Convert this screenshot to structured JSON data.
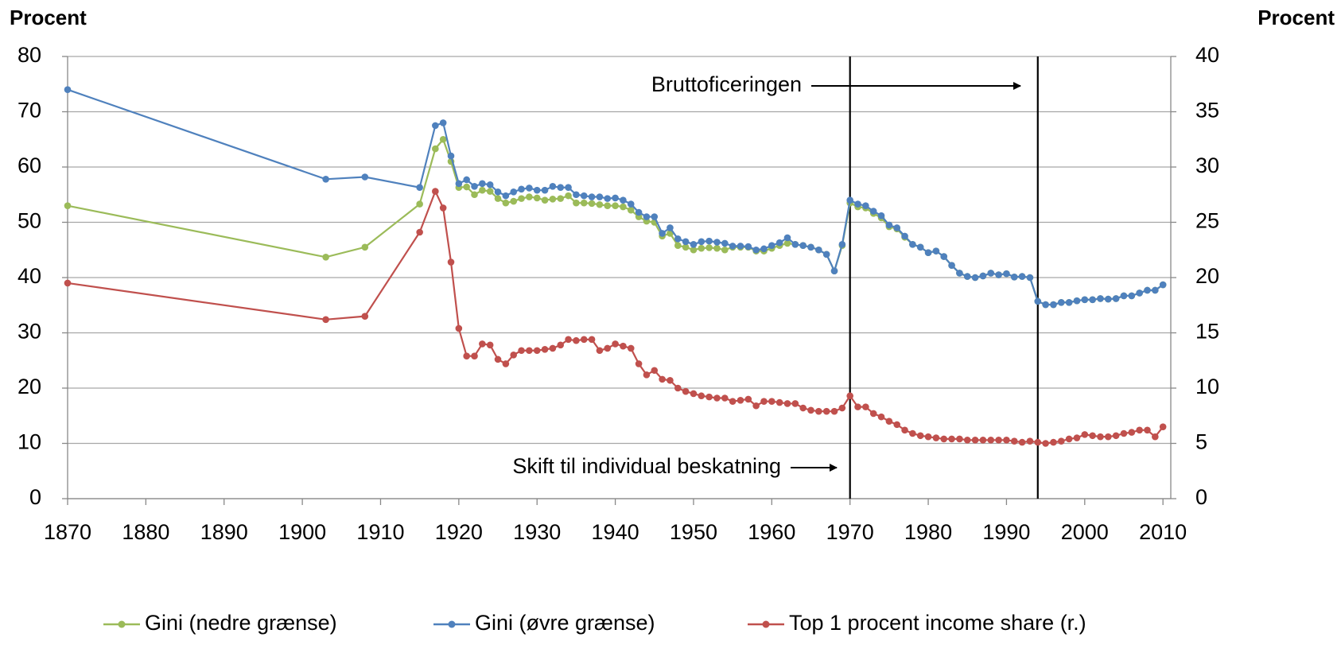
{
  "chart_data": {
    "type": "line",
    "ylabel": "Procent",
    "y2label": "Procent",
    "xlim": [
      1870,
      2011
    ],
    "xticks": [
      1870,
      1880,
      1890,
      1900,
      1910,
      1920,
      1930,
      1940,
      1950,
      1960,
      1970,
      1980,
      1990,
      2000,
      2010
    ],
    "ylim": [
      0,
      80
    ],
    "yticks": [
      0,
      10,
      20,
      30,
      40,
      50,
      60,
      70,
      80
    ],
    "y2lim": [
      0,
      40
    ],
    "y2ticks": [
      0,
      5,
      10,
      15,
      20,
      25,
      30,
      35,
      40
    ],
    "grid": true,
    "legend": "bottom",
    "annotations": [
      {
        "text": "Bruttoficeringen",
        "x": 1994
      },
      {
        "text": "Skift til individual beskatning",
        "x": 1970
      }
    ],
    "x": [
      1870,
      1903,
      1908,
      1915,
      1917,
      1918,
      1919,
      1920,
      1921,
      1922,
      1923,
      1924,
      1925,
      1926,
      1927,
      1928,
      1929,
      1930,
      1931,
      1932,
      1933,
      1934,
      1935,
      1936,
      1937,
      1938,
      1939,
      1940,
      1941,
      1942,
      1943,
      1944,
      1945,
      1946,
      1947,
      1948,
      1949,
      1950,
      1951,
      1952,
      1953,
      1954,
      1955,
      1956,
      1957,
      1958,
      1959,
      1960,
      1961,
      1962,
      1963,
      1964,
      1965,
      1966,
      1967,
      1968,
      1969,
      1970,
      1971,
      1972,
      1973,
      1974,
      1975,
      1976,
      1977,
      1978,
      1979,
      1980,
      1981,
      1982,
      1983,
      1984,
      1985,
      1986,
      1987,
      1988,
      1989,
      1990,
      1991,
      1992,
      1993,
      1994,
      1995,
      1996,
      1997,
      1998,
      1999,
      2000,
      2001,
      2002,
      2003,
      2004,
      2005,
      2006,
      2007,
      2008,
      2009,
      2010
    ],
    "series": [
      {
        "name": "Gini (nedre grænse)",
        "color": "#9bbb59",
        "values": [
          53,
          43.7,
          45.5,
          53.3,
          63.3,
          65,
          61,
          56.3,
          56.4,
          55,
          55.8,
          55.6,
          54.3,
          53.5,
          53.8,
          54.3,
          54.6,
          54.4,
          54,
          54.2,
          54.3,
          54.8,
          53.5,
          53.5,
          53.4,
          53.2,
          53,
          53,
          52.8,
          52.2,
          51,
          50.2,
          50,
          47.5,
          48,
          45.8,
          45.5,
          45,
          45.3,
          45.4,
          45.3,
          45,
          45.5,
          45.5,
          45.5,
          44.8,
          44.8,
          45.3,
          45.8,
          46.2,
          46,
          45.8,
          45.5,
          45,
          44.2,
          41.2,
          45.8,
          53.5,
          52.8,
          52.6,
          51.6,
          50.8,
          49.2,
          48.8,
          47.3,
          46,
          45.5,
          44.5,
          44.8,
          43.8,
          42.2,
          40.8,
          40.2,
          40,
          40.3,
          40.8,
          40.5,
          40.7,
          40.1,
          40.2,
          40,
          35.7,
          35.1,
          35.1,
          35.5,
          35.5,
          35.8,
          36,
          36,
          36.2,
          36.1,
          36.2,
          36.7,
          36.7,
          37.2,
          37.7,
          37.7,
          38.7
        ]
      },
      {
        "name": "Gini (øvre grænse)",
        "color": "#4f81bd",
        "values": [
          74,
          57.8,
          58.2,
          56.3,
          67.5,
          68,
          62,
          57,
          57.7,
          56.5,
          57,
          56.8,
          55.5,
          54.8,
          55.5,
          56,
          56.2,
          55.8,
          55.8,
          56.5,
          56.3,
          56.3,
          55,
          54.8,
          54.6,
          54.6,
          54.3,
          54.4,
          54,
          53.3,
          51.8,
          51,
          51,
          48,
          49,
          47,
          46.5,
          46,
          46.5,
          46.6,
          46.4,
          46.2,
          45.7,
          45.7,
          45.6,
          45,
          45.2,
          45.8,
          46.3,
          47.2,
          46,
          45.8,
          45.5,
          45,
          44.2,
          41.2,
          46,
          54,
          53.3,
          53,
          52,
          51.2,
          49.5,
          49,
          47.5,
          46,
          45.5,
          44.5,
          44.8,
          43.8,
          42.2,
          40.8,
          40.2,
          40,
          40.3,
          40.8,
          40.5,
          40.7,
          40.1,
          40.2,
          40,
          35.7,
          35.1,
          35.1,
          35.5,
          35.5,
          35.8,
          36,
          36,
          36.2,
          36.1,
          36.2,
          36.7,
          36.7,
          37.2,
          37.7,
          37.7,
          38.7
        ]
      },
      {
        "name": "Top 1 procent income share (r.)",
        "color": "#c0504d",
        "axis": "y2",
        "values": [
          19.5,
          16.2,
          16.5,
          24.1,
          27.8,
          26.3,
          21.4,
          15.4,
          12.9,
          12.9,
          14,
          13.9,
          12.6,
          12.2,
          13,
          13.4,
          13.4,
          13.4,
          13.5,
          13.6,
          13.9,
          14.4,
          14.3,
          14.4,
          14.4,
          13.4,
          13.6,
          14,
          13.8,
          13.6,
          12.2,
          11.2,
          11.6,
          10.8,
          10.7,
          10,
          9.7,
          9.5,
          9.3,
          9.2,
          9.1,
          9.1,
          8.8,
          8.9,
          9,
          8.4,
          8.8,
          8.8,
          8.7,
          8.6,
          8.6,
          8.2,
          8,
          7.9,
          7.9,
          7.9,
          8.2,
          9.3,
          8.3,
          8.3,
          7.7,
          7.4,
          7,
          6.7,
          6.2,
          5.9,
          5.7,
          5.6,
          5.5,
          5.4,
          5.4,
          5.4,
          5.3,
          5.3,
          5.3,
          5.3,
          5.3,
          5.3,
          5.2,
          5.1,
          5.2,
          5.1,
          5,
          5.1,
          5.2,
          5.4,
          5.5,
          5.8,
          5.7,
          5.6,
          5.6,
          5.7,
          5.9,
          6,
          6.2,
          6.2,
          5.6,
          6.5
        ]
      }
    ]
  }
}
